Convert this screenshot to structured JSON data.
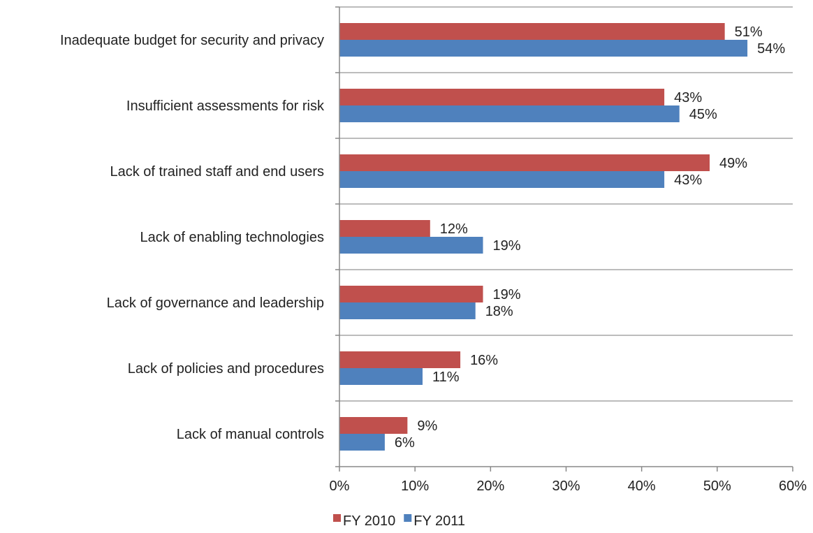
{
  "chart_data": {
    "type": "bar",
    "orientation": "horizontal",
    "categories": [
      "Inadequate budget for security and privacy",
      "Insufficient assessments for risk",
      "Lack of trained staff and end users",
      "Lack of enabling technologies",
      "Lack of governance and leadership",
      "Lack of policies and procedures",
      "Lack of manual controls"
    ],
    "series": [
      {
        "name": "FY 2010",
        "color": "#c0504d",
        "values": [
          51,
          43,
          49,
          12,
          19,
          16,
          9
        ]
      },
      {
        "name": "FY 2011",
        "color": "#4f81bd",
        "values": [
          54,
          45,
          43,
          19,
          18,
          11,
          6
        ]
      }
    ],
    "value_suffix": "%",
    "xlim": [
      0,
      60
    ],
    "xticks": [
      0,
      10,
      20,
      30,
      40,
      50,
      60
    ],
    "xtick_labels": [
      "0%",
      "10%",
      "20%",
      "30%",
      "40%",
      "50%",
      "60%"
    ],
    "grid": "horizontal separators between categories",
    "legend_position": "bottom",
    "title": "",
    "xlabel": "",
    "ylabel": ""
  }
}
